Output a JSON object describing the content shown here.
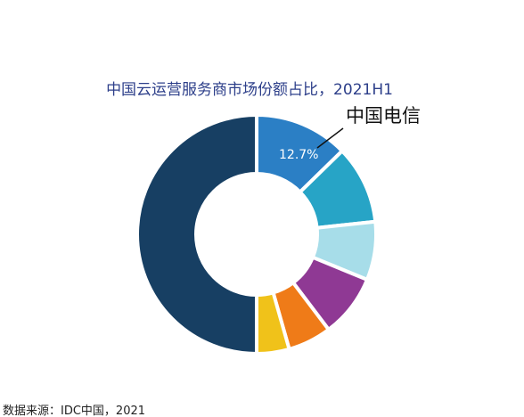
{
  "chart_data": {
    "type": "pie",
    "style": "donut",
    "title": "中国云运营服务商市场份额占比，2021H1",
    "source": "数据来源：IDC中国，2021",
    "callout_label": "中国电信",
    "data_label": "12.7%",
    "slices": [
      {
        "value": 12.7,
        "color": "#2b7fc5"
      },
      {
        "value": 10.6,
        "color": "#27a4c6"
      },
      {
        "value": 7.9,
        "color": "#a7dde9"
      },
      {
        "value": 8.5,
        "color": "#8f3994"
      },
      {
        "value": 5.9,
        "color": "#ef7b18"
      },
      {
        "value": 4.4,
        "color": "#f0c21a"
      },
      {
        "value": 50.0,
        "color": "#173f63"
      }
    ]
  }
}
